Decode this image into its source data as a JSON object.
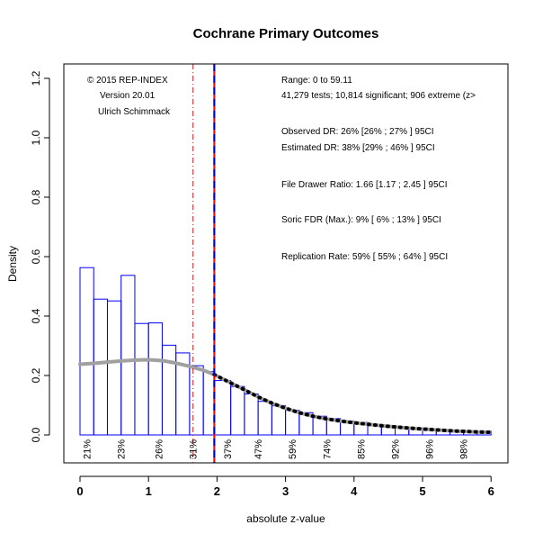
{
  "chart_data": {
    "type": "histogram",
    "title": "Cochrane Primary Outcomes",
    "xlabel": "absolute z-value",
    "ylabel": "Density",
    "xlim": [
      0,
      6
    ],
    "ylim": [
      0,
      1.2
    ],
    "x_ticks": [
      0,
      1,
      2,
      3,
      4,
      5,
      6
    ],
    "y_ticks": [
      0.0,
      0.2,
      0.4,
      0.6,
      0.8,
      1.0,
      1.2
    ],
    "bin_width": 0.2,
    "bins": [
      {
        "x0": 0.0,
        "x1": 0.2,
        "density": 0.563
      },
      {
        "x0": 0.2,
        "x1": 0.4,
        "density": 0.457
      },
      {
        "x0": 0.4,
        "x1": 0.6,
        "density": 0.451
      },
      {
        "x0": 0.6,
        "x1": 0.8,
        "density": 0.537
      },
      {
        "x0": 0.8,
        "x1": 1.0,
        "density": 0.375
      },
      {
        "x0": 1.0,
        "x1": 1.2,
        "density": 0.377
      },
      {
        "x0": 1.2,
        "x1": 1.4,
        "density": 0.302
      },
      {
        "x0": 1.4,
        "x1": 1.6,
        "density": 0.276
      },
      {
        "x0": 1.6,
        "x1": 1.8,
        "density": 0.233
      },
      {
        "x0": 1.8,
        "x1": 1.96,
        "density": 0.213
      },
      {
        "x0": 1.96,
        "x1": 2.2,
        "density": 0.183
      },
      {
        "x0": 2.2,
        "x1": 2.4,
        "density": 0.163
      },
      {
        "x0": 2.4,
        "x1": 2.6,
        "density": 0.138
      },
      {
        "x0": 2.6,
        "x1": 2.8,
        "density": 0.113
      },
      {
        "x0": 2.8,
        "x1": 3.0,
        "density": 0.098
      },
      {
        "x0": 3.0,
        "x1": 3.2,
        "density": 0.083
      },
      {
        "x0": 3.2,
        "x1": 3.4,
        "density": 0.075
      },
      {
        "x0": 3.4,
        "x1": 3.6,
        "density": 0.063
      },
      {
        "x0": 3.6,
        "x1": 3.8,
        "density": 0.055
      },
      {
        "x0": 3.8,
        "x1": 4.0,
        "density": 0.047
      },
      {
        "x0": 4.0,
        "x1": 4.2,
        "density": 0.042
      },
      {
        "x0": 4.2,
        "x1": 4.4,
        "density": 0.036
      },
      {
        "x0": 4.4,
        "x1": 4.6,
        "density": 0.03
      },
      {
        "x0": 4.6,
        "x1": 4.8,
        "density": 0.026
      },
      {
        "x0": 4.8,
        "x1": 5.0,
        "density": 0.022
      },
      {
        "x0": 5.0,
        "x1": 5.2,
        "density": 0.019
      },
      {
        "x0": 5.2,
        "x1": 5.4,
        "density": 0.017
      },
      {
        "x0": 5.4,
        "x1": 5.6,
        "density": 0.015
      },
      {
        "x0": 5.6,
        "x1": 5.8,
        "density": 0.014
      },
      {
        "x0": 5.8,
        "x1": 6.0,
        "density": 0.013
      }
    ],
    "fitted_curve": {
      "x": [
        0.0,
        0.2,
        0.4,
        0.6,
        0.8,
        1.0,
        1.2,
        1.4,
        1.6,
        1.8,
        1.96
      ],
      "y": [
        0.238,
        0.241,
        0.245,
        0.249,
        0.252,
        0.253,
        0.25,
        0.242,
        0.231,
        0.218,
        0.203
      ]
    },
    "significant_curve": {
      "x": [
        1.96,
        2.2,
        2.4,
        2.6,
        2.8,
        3.0,
        3.2,
        3.4,
        3.6,
        3.8,
        4.0,
        4.2,
        4.4,
        4.6,
        4.8,
        5.0,
        5.2,
        5.4,
        5.6,
        5.8,
        6.0
      ],
      "y": [
        0.203,
        0.175,
        0.152,
        0.128,
        0.107,
        0.09,
        0.075,
        0.063,
        0.054,
        0.047,
        0.041,
        0.036,
        0.031,
        0.027,
        0.023,
        0.02,
        0.017,
        0.014,
        0.012,
        0.01,
        0.009
      ]
    },
    "vertical_lines": [
      {
        "x": 1.65,
        "color": "#c02020",
        "style": "dashdot"
      },
      {
        "x": 1.96,
        "color": "#ff0000",
        "style": "solid"
      },
      {
        "x": 1.96,
        "color": "#0000cc",
        "style": "dashed"
      }
    ],
    "power_labels": [
      {
        "x": 0.1,
        "text": "21%"
      },
      {
        "x": 0.6,
        "text": "23%"
      },
      {
        "x": 1.15,
        "text": "26%"
      },
      {
        "x": 1.65,
        "text": "31%"
      },
      {
        "x": 2.15,
        "text": "37%"
      },
      {
        "x": 2.6,
        "text": "47%"
      },
      {
        "x": 3.1,
        "text": "59%"
      },
      {
        "x": 3.6,
        "text": "74%"
      },
      {
        "x": 4.1,
        "text": "85%"
      },
      {
        "x": 4.6,
        "text": "92%"
      },
      {
        "x": 5.1,
        "text": "96%"
      },
      {
        "x": 5.6,
        "text": "98%"
      }
    ],
    "annotations_left": [
      "© 2015 REP-INDEX",
      "Version 20.01",
      "Ulrich Schimmack"
    ],
    "annotations_right": [
      "Range: 0 to 59.11",
      "41,279 tests; 10,814 significant; 906 extreme (z>",
      "Observed DR: 26% [26% ; 27% ] 95CI",
      "Estimated DR: 38% [29% ; 46% ] 95CI",
      "File Drawer Ratio: 1.66 [1.17 ; 2.45 ] 95CI",
      "Soric FDR (Max.): 9% [ 6% ; 13% ] 95CI",
      "Replication Rate: 59% [ 55% ; 64% ] 95CI"
    ],
    "colors": {
      "bars": "#0000ff",
      "fit_line": "#a0a0a0",
      "sig_line": "#000000",
      "crit_line": "#ff0000"
    },
    "grid": false,
    "legend": "none"
  }
}
